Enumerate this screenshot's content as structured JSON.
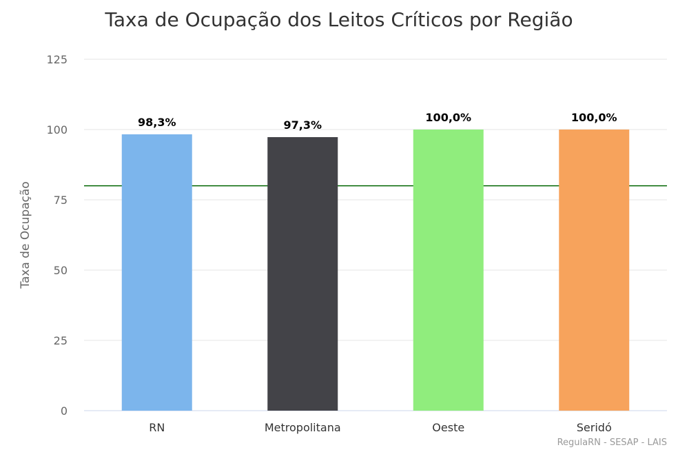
{
  "chart_data": {
    "type": "bar",
    "title": "Taxa de Ocupação dos Leitos Críticos por Região",
    "xlabel": "",
    "ylabel": "Taxa de Ocupação",
    "ylim": [
      0,
      125
    ],
    "yticks": [
      0,
      25,
      50,
      75,
      100,
      125
    ],
    "grid": true,
    "categories": [
      "RN",
      "Metropolitana",
      "Oeste",
      "Seridó"
    ],
    "values": [
      98.3,
      97.3,
      100.0,
      100.0
    ],
    "data_labels": [
      "98,3%",
      "97,3%",
      "100,0%",
      "100,0%"
    ],
    "colors": [
      "#7cb5ec",
      "#434348",
      "#90ed7d",
      "#f7a35c"
    ],
    "reference_line": {
      "value": 80,
      "color": "#006400"
    },
    "credit": "RegulaRN - SESAP - LAIS"
  }
}
